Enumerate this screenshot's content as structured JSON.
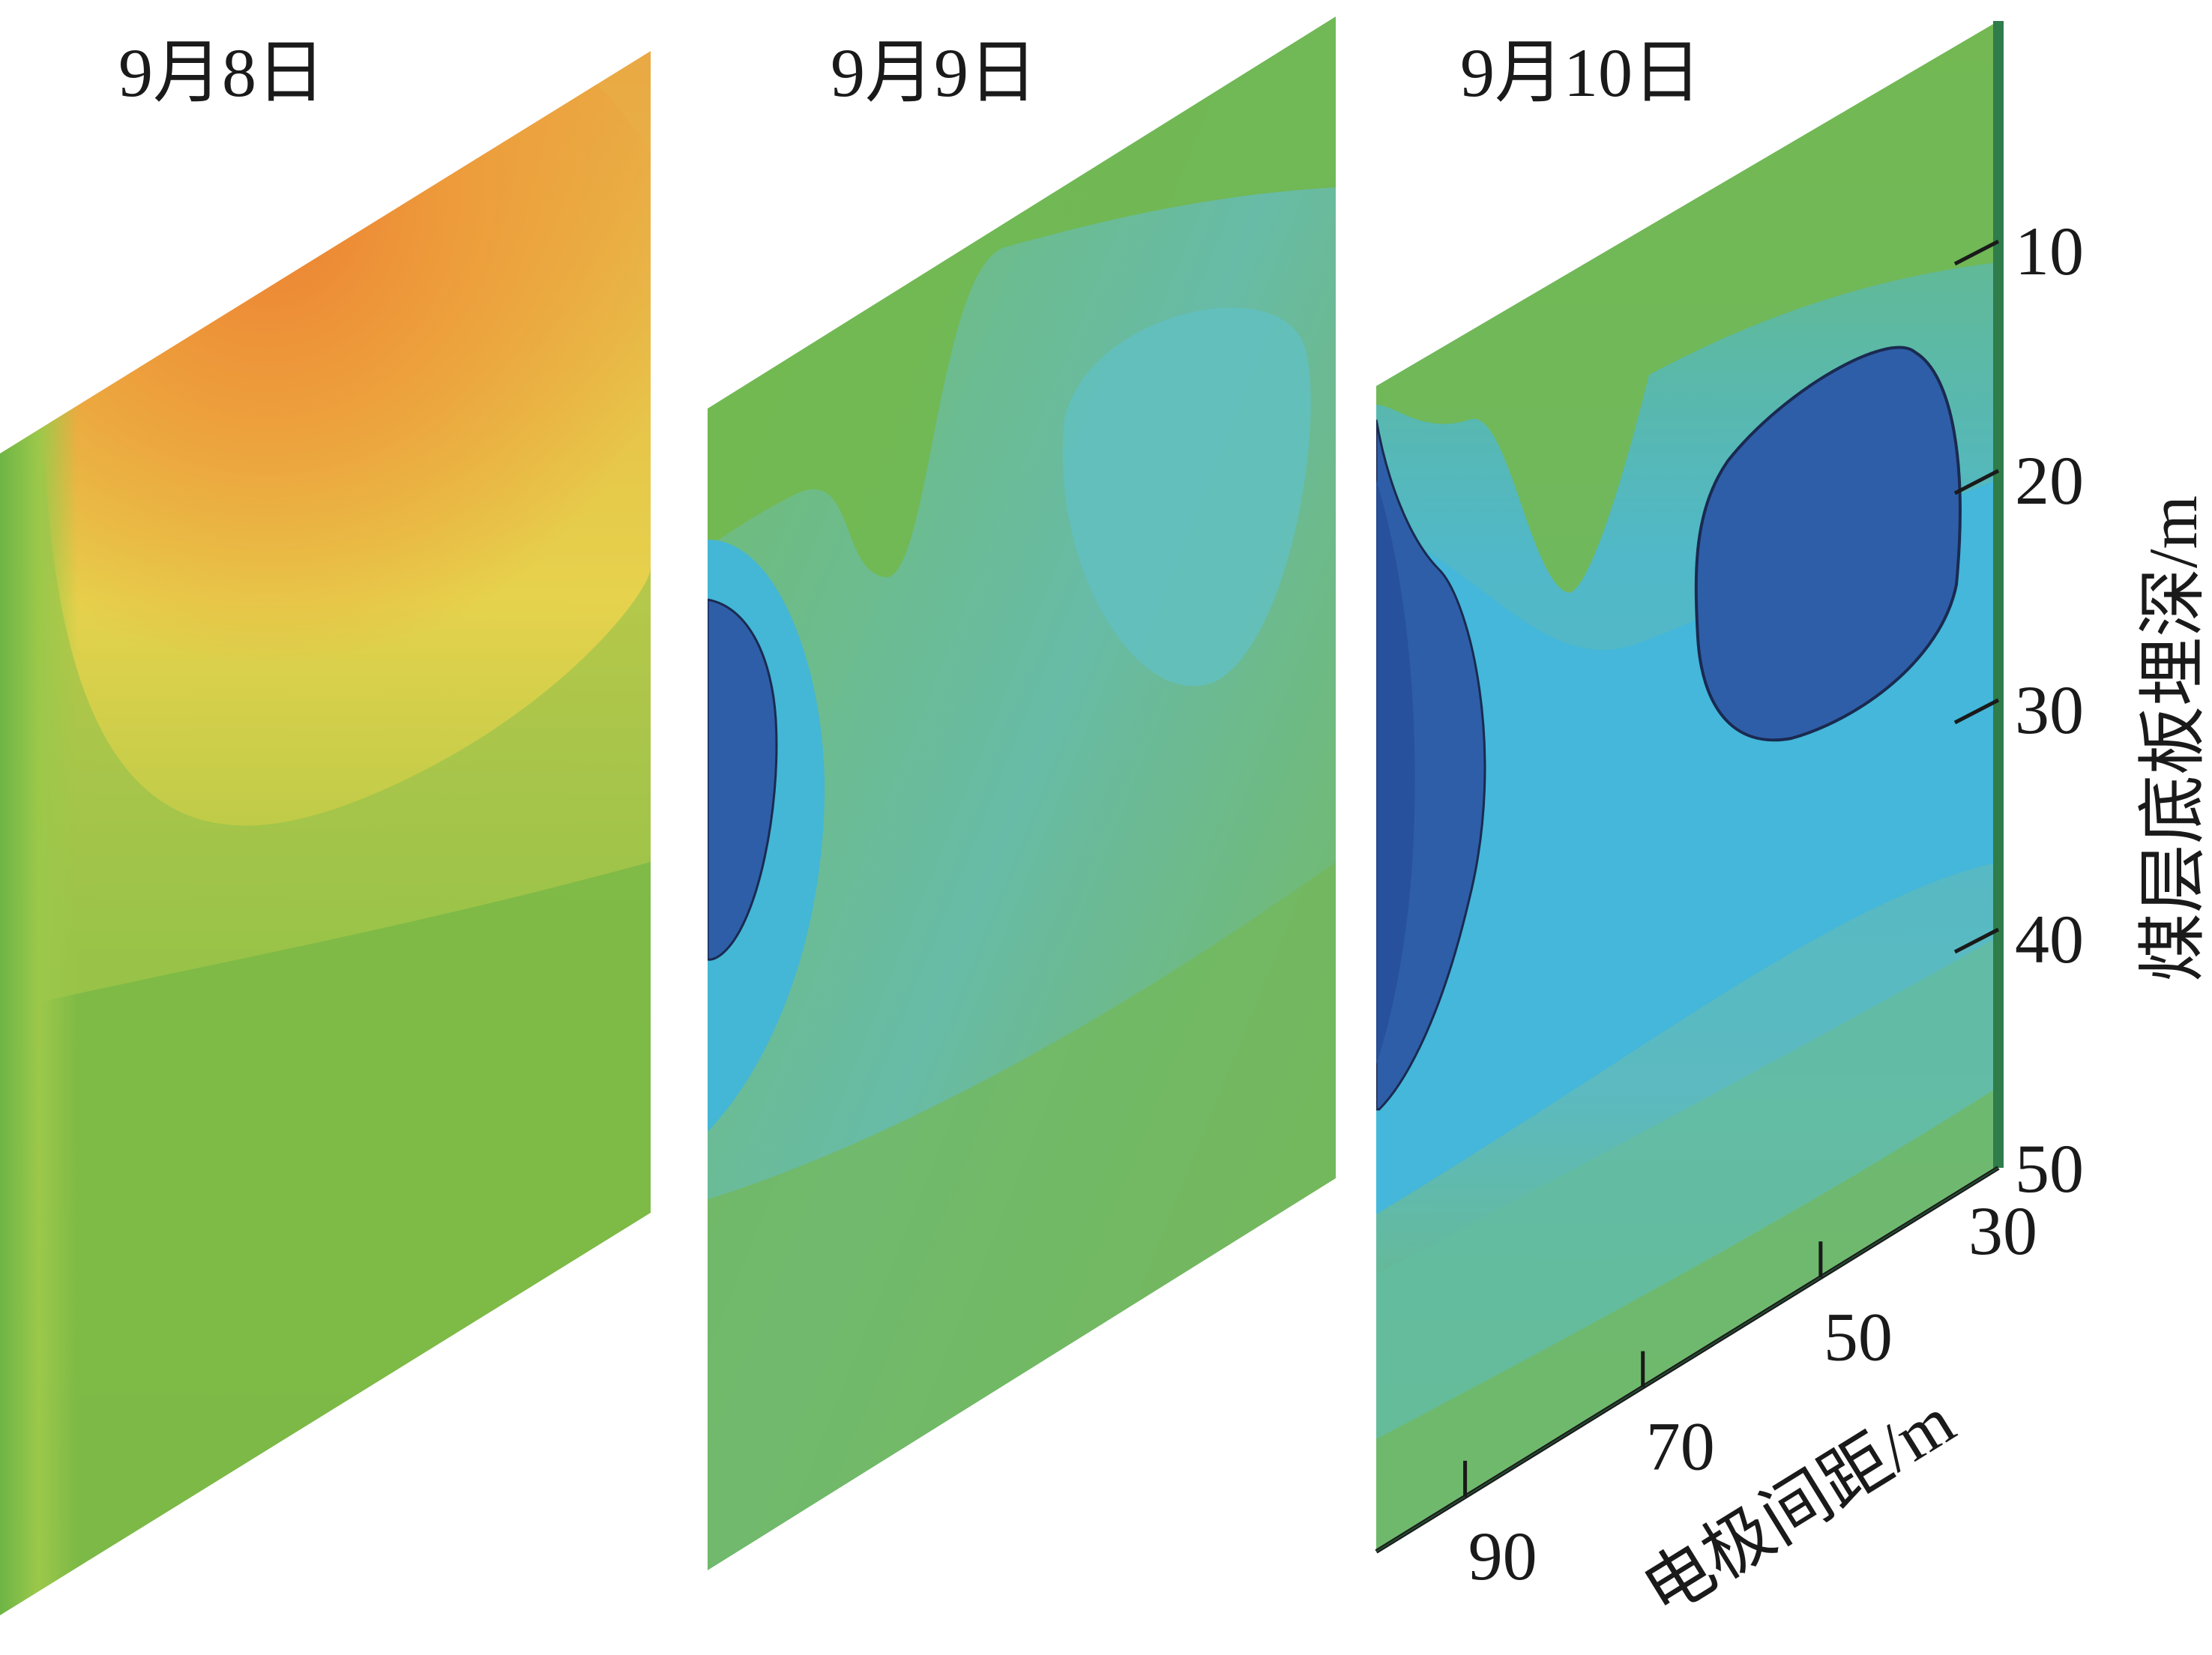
{
  "chart_data": {
    "type": "heatmap",
    "title": "",
    "panels": [
      {
        "label": "9月8日"
      },
      {
        "label": "9月9日"
      },
      {
        "label": "9月10日"
      }
    ],
    "depth_axis": {
      "label": "煤层底板埋深/m",
      "ticks": [
        10,
        20,
        30,
        40,
        50
      ],
      "range": [
        0,
        50
      ]
    },
    "spacing_axis": {
      "label": "电极间距/m",
      "ticks": [
        30,
        50,
        70,
        90
      ],
      "range": [
        30,
        100
      ]
    },
    "colors": {
      "orange": "#ec8a36",
      "yellow": "#e6e04c",
      "green": "#7ab846",
      "teal": "#66bdb2",
      "light_blue": "#42b4d8",
      "dark_blue": "#2f5ea8",
      "axis": "#2e7d4a"
    }
  }
}
